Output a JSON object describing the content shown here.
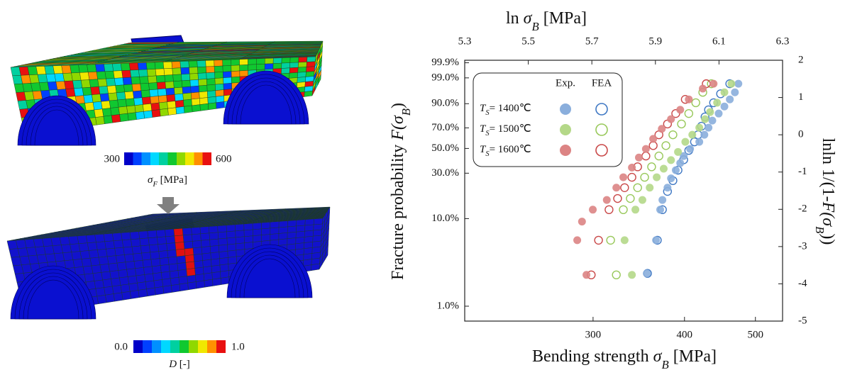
{
  "left": {
    "cbar1": {
      "min": "300",
      "max": "600",
      "label_sym": "σ",
      "label_sub": "F",
      "label_unit": " [MPa]"
    },
    "cbar2": {
      "min": "0.0",
      "max": "1.0",
      "label_sym": "D",
      "label_unit": " [-]"
    }
  },
  "chart_data": {
    "type": "scatter",
    "top_label": {
      "text": "ln ",
      "sym": "σ",
      "sub": "B",
      "unit": " [MPa]"
    },
    "bottom_label": {
      "text": "Bending strength ",
      "sym": "σ",
      "sub": "B",
      "unit": " [MPa]"
    },
    "left_label": {
      "text": "Fracture probability ",
      "sym": "F(σ",
      "sub": "B",
      "unit": ")"
    },
    "right_label": {
      "text": "lnln 1/(1-",
      "sym": "F(σ",
      "sub": "B",
      "unit": "))"
    },
    "xlim": [
      5.3,
      6.3
    ],
    "xticks": [
      5.3,
      5.5,
      5.7,
      5.9,
      6.1,
      6.3
    ],
    "x2_scale": "ln",
    "x2ticks": [
      300,
      400,
      500
    ],
    "ylim": [
      -5,
      2
    ],
    "yticks": [
      -5,
      -4,
      -3,
      -2,
      -1,
      0,
      1,
      2
    ],
    "prob_scale": "weibull",
    "prob_ticks": [
      {
        "value": 1,
        "label": "1.0%"
      },
      {
        "value": 10,
        "label": "10.0%"
      },
      {
        "value": 30,
        "label": "30.0%"
      },
      {
        "value": 50,
        "label": "50.0%"
      },
      {
        "value": 70,
        "label": "70.0%"
      },
      {
        "value": 90,
        "label": "90.0%"
      },
      {
        "value": 99,
        "label": "99.0%"
      },
      {
        "value": 99.9,
        "label": "99.9%"
      }
    ],
    "legend_columns": [
      "Exp.",
      "FEA"
    ],
    "legend_symbol": "T",
    "legend_sub": "S",
    "groups": [
      {
        "label": "= 1400℃",
        "color": "#3f78c4",
        "fill": "#8aaedc",
        "exp": {
          "x": [
            5.873,
            5.902,
            5.915,
            5.922,
            5.938,
            5.949,
            5.964,
            5.978,
            5.989,
            6.009,
            6.038,
            6.054,
            6.067,
            6.079,
            6.099,
            6.117,
            6.134,
            6.15,
            6.161
          ],
          "y": [
            -3.72,
            -2.83,
            -2.01,
            -1.75,
            -1.42,
            -1.17,
            -0.95,
            -0.76,
            -0.57,
            -0.38,
            -0.19,
            0.0,
            0.19,
            0.38,
            0.57,
            0.76,
            0.95,
            1.14,
            1.37
          ]
        },
        "fea": {
          "x": [
            5.875,
            5.906,
            5.922,
            5.938,
            5.955,
            5.971,
            5.989,
            6.005,
            6.023,
            6.034,
            6.045,
            6.056,
            6.067,
            6.083,
            6.105,
            6.134
          ],
          "y": [
            -3.72,
            -2.83,
            -2.01,
            -1.52,
            -1.23,
            -0.95,
            -0.67,
            -0.42,
            -0.19,
            0.0,
            0.23,
            0.48,
            0.67,
            0.86,
            1.1,
            1.37
          ]
        }
      },
      {
        "label": "= 1500℃",
        "color": "#98c85a",
        "fill": "#b4d888",
        "exp": {
          "x": [
            5.826,
            5.803,
            5.837,
            5.859,
            5.882,
            5.904,
            5.926,
            5.949,
            5.971,
            5.994,
            6.016,
            6.038,
            6.056,
            6.072,
            6.094,
            6.117,
            6.139
          ],
          "y": [
            -3.76,
            -2.83,
            -2.01,
            -1.75,
            -1.42,
            -1.14,
            -0.91,
            -0.68,
            -0.46,
            -0.19,
            0.0,
            0.19,
            0.42,
            0.61,
            0.86,
            1.14,
            1.37
          ]
        },
        "fea": {
          "x": [
            5.777,
            5.759,
            5.799,
            5.821,
            5.844,
            5.866,
            5.888,
            5.911,
            5.933,
            5.955,
            5.982,
            6.005,
            6.027,
            6.049,
            6.076
          ],
          "y": [
            -3.76,
            -2.83,
            -2.01,
            -1.71,
            -1.42,
            -1.14,
            -0.86,
            -0.57,
            -0.29,
            0.0,
            0.29,
            0.57,
            0.86,
            1.14,
            1.37
          ]
        }
      },
      {
        "label": "= 1600℃",
        "color": "#c94848",
        "fill": "#dc8484",
        "exp": {
          "x": [
            5.683,
            5.654,
            5.669,
            5.703,
            5.747,
            5.777,
            5.799,
            5.826,
            5.848,
            5.87,
            5.893,
            5.92,
            5.949,
            5.978,
            6.005,
            6.049,
            6.083
          ],
          "y": [
            -3.76,
            -2.83,
            -2.33,
            -2.01,
            -1.75,
            -1.42,
            -1.14,
            -0.88,
            -0.61,
            -0.38,
            -0.11,
            0.16,
            0.42,
            0.67,
            0.95,
            1.24,
            1.37
          ]
        },
        "fea": {
          "x": [
            5.698,
            5.721,
            5.754,
            5.781,
            5.803,
            5.826,
            5.844,
            5.87,
            5.893,
            5.911,
            5.938,
            5.964,
            5.994,
            6.06
          ],
          "y": [
            -3.76,
            -2.83,
            -2.01,
            -1.71,
            -1.42,
            -1.14,
            -0.86,
            -0.57,
            -0.29,
            0.0,
            0.29,
            0.57,
            0.95,
            1.37
          ]
        }
      }
    ]
  }
}
